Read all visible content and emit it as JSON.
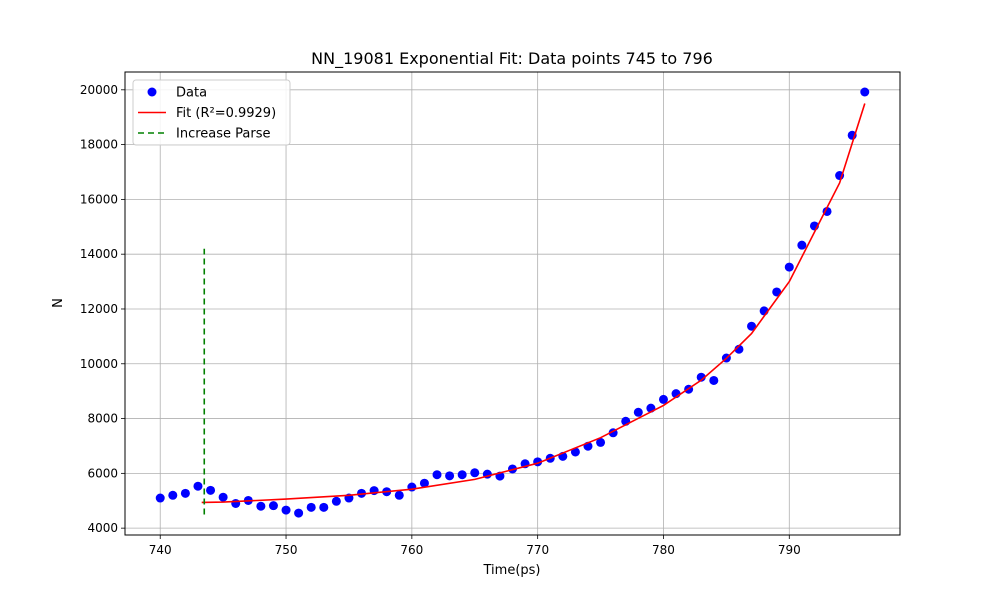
{
  "chart_data": {
    "type": "scatter",
    "title": "NN_19081 Exponential Fit: Data points 745 to 796",
    "xlabel": "Time(ps)",
    "ylabel": "N",
    "xlim": [
      737.2,
      798.8
    ],
    "ylim": [
      3750,
      20650
    ],
    "xticks": [
      740,
      750,
      760,
      770,
      780,
      790
    ],
    "yticks": [
      4000,
      6000,
      8000,
      10000,
      12000,
      14000,
      16000,
      18000,
      20000
    ],
    "grid": true,
    "legend_position": "top-left",
    "series": [
      {
        "name": "Data",
        "kind": "scatter",
        "color": "#0000ff",
        "points": [
          [
            740,
            5100
          ],
          [
            741,
            5200
          ],
          [
            742,
            5270
          ],
          [
            743,
            5530
          ],
          [
            744,
            5380
          ],
          [
            745,
            5130
          ],
          [
            746,
            4900
          ],
          [
            747,
            5010
          ],
          [
            748,
            4800
          ],
          [
            749,
            4820
          ],
          [
            750,
            4660
          ],
          [
            751,
            4550
          ],
          [
            752,
            4760
          ],
          [
            753,
            4760
          ],
          [
            754,
            4980
          ],
          [
            755,
            5100
          ],
          [
            756,
            5270
          ],
          [
            757,
            5370
          ],
          [
            758,
            5330
          ],
          [
            759,
            5200
          ],
          [
            760,
            5500
          ],
          [
            761,
            5640
          ],
          [
            762,
            5950
          ],
          [
            763,
            5910
          ],
          [
            764,
            5950
          ],
          [
            765,
            6020
          ],
          [
            766,
            5970
          ],
          [
            767,
            5900
          ],
          [
            768,
            6160
          ],
          [
            769,
            6350
          ],
          [
            770,
            6420
          ],
          [
            771,
            6550
          ],
          [
            772,
            6620
          ],
          [
            773,
            6780
          ],
          [
            774,
            6990
          ],
          [
            775,
            7130
          ],
          [
            776,
            7480
          ],
          [
            777,
            7900
          ],
          [
            778,
            8230
          ],
          [
            779,
            8380
          ],
          [
            780,
            8700
          ],
          [
            781,
            8910
          ],
          [
            782,
            9070
          ],
          [
            783,
            9510
          ],
          [
            784,
            9390
          ],
          [
            785,
            10210
          ],
          [
            786,
            10530
          ],
          [
            787,
            11370
          ],
          [
            788,
            11930
          ],
          [
            789,
            12620
          ],
          [
            790,
            13530
          ],
          [
            791,
            14330
          ],
          [
            792,
            15030
          ],
          [
            793,
            15560
          ],
          [
            794,
            16870
          ],
          [
            795,
            18340
          ],
          [
            796,
            19920
          ]
        ]
      },
      {
        "name": "Fit (R²=0.9929)",
        "kind": "line",
        "color": "#ff0000",
        "points": [
          [
            743.3,
            4940
          ],
          [
            745,
            4950
          ],
          [
            750,
            5060
          ],
          [
            755,
            5200
          ],
          [
            760,
            5420
          ],
          [
            765,
            5780
          ],
          [
            770,
            6370
          ],
          [
            775,
            7300
          ],
          [
            780,
            8480
          ],
          [
            783,
            9400
          ],
          [
            785,
            10200
          ],
          [
            787,
            11100
          ],
          [
            790,
            13000
          ],
          [
            792,
            14800
          ],
          [
            794,
            16600
          ],
          [
            796,
            19500
          ]
        ]
      },
      {
        "name": "Increase Parse",
        "kind": "vline",
        "color": "#008000",
        "x": 743.5,
        "y_range": [
          4500,
          14200
        ]
      }
    ]
  }
}
